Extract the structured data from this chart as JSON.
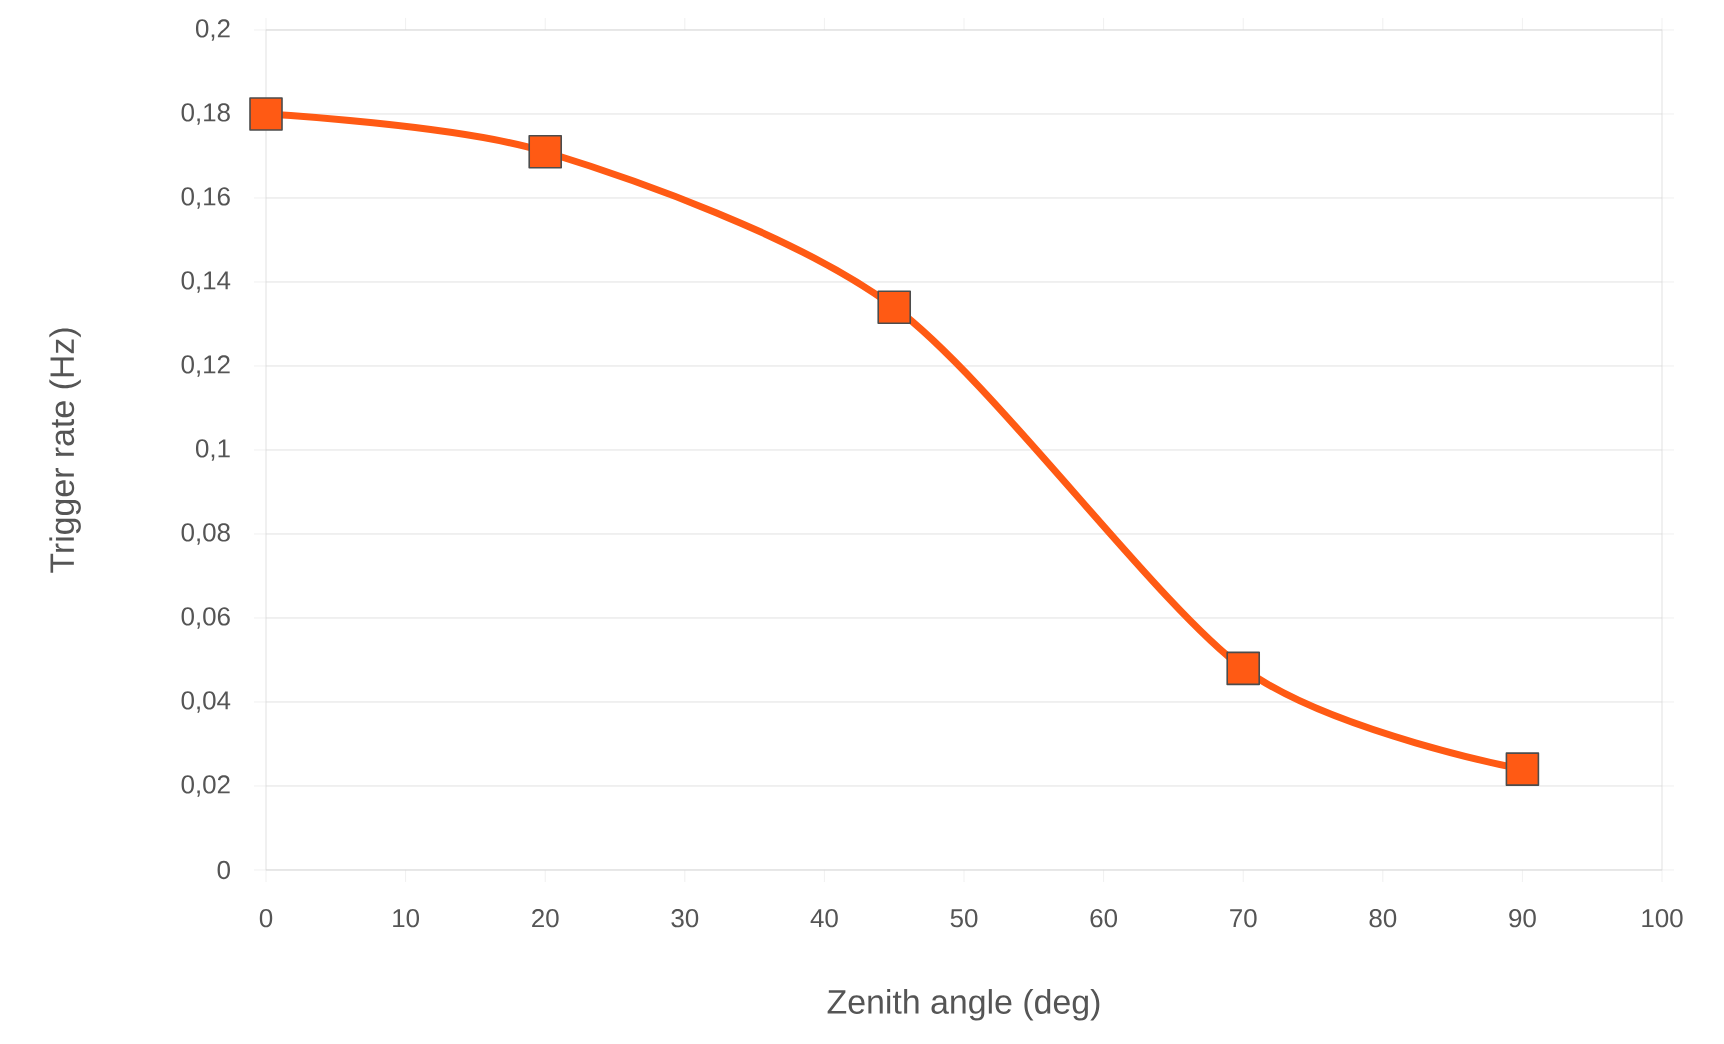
{
  "chart_data": {
    "type": "line",
    "xlabel": "Zenith angle (deg)",
    "ylabel": "Trigger rate (Hz)",
    "x": [
      0,
      20,
      45,
      70,
      90
    ],
    "series": [
      {
        "color": "#ff5a14",
        "values": [
          0.18,
          0.171,
          0.134,
          0.048,
          0.024
        ]
      }
    ],
    "xlim": [
      0,
      100
    ],
    "xticks": [
      0,
      10,
      20,
      30,
      40,
      50,
      60,
      70,
      80,
      90,
      100
    ],
    "ylim": [
      0,
      0.2
    ],
    "yticks": [
      {
        "value": 0,
        "label": "0"
      },
      {
        "value": 0.02,
        "label": "0,02"
      },
      {
        "value": 0.04,
        "label": "0,04"
      },
      {
        "value": 0.06,
        "label": "0,06"
      },
      {
        "value": 0.08,
        "label": "0,08"
      },
      {
        "value": 0.1,
        "label": "0,1"
      },
      {
        "value": 0.12,
        "label": "0,12"
      },
      {
        "value": 0.14,
        "label": "0,14"
      },
      {
        "value": 0.16,
        "label": "0,16"
      },
      {
        "value": 0.18,
        "label": "0,18"
      },
      {
        "value": 0.2,
        "label": "0,2"
      }
    ],
    "grid": "y",
    "marker": "square"
  }
}
